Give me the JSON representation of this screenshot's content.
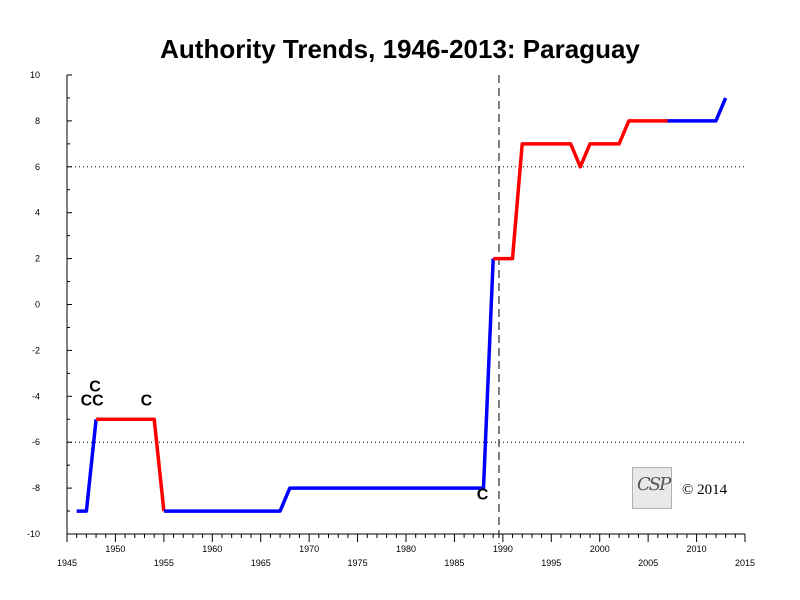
{
  "title": "Authority Trends, 1946-2013: Paraguay",
  "copyright": "© 2014",
  "logo_text": "CSP",
  "chart_data": {
    "type": "line",
    "title": "Authority Trends, 1946-2013: Paraguay",
    "xlabel": "",
    "ylabel": "",
    "xlim": [
      1945,
      2015
    ],
    "ylim": [
      -10,
      10
    ],
    "x_ticks": [
      1945,
      1950,
      1955,
      1960,
      1965,
      1970,
      1975,
      1980,
      1985,
      1990,
      1995,
      2000,
      2005,
      2010,
      2015
    ],
    "y_ticks": [
      -10,
      -8,
      -6,
      -4,
      -2,
      0,
      2,
      4,
      6,
      8,
      10
    ],
    "reference_lines": {
      "horizontal_dotted": [
        6,
        -6
      ],
      "vertical_dashed": [
        1989.6
      ]
    },
    "colors": {
      "blue": "#0000ff",
      "red": "#ff0000"
    },
    "segments": [
      {
        "color": "blue",
        "points": [
          [
            1946,
            -9
          ],
          [
            1947,
            -9
          ],
          [
            1948,
            -5
          ]
        ]
      },
      {
        "color": "red",
        "points": [
          [
            1948,
            -5
          ],
          [
            1954,
            -5
          ],
          [
            1955,
            -9
          ]
        ]
      },
      {
        "color": "blue",
        "points": [
          [
            1955,
            -9
          ],
          [
            1967,
            -9
          ],
          [
            1968,
            -8
          ],
          [
            1988,
            -8
          ],
          [
            1989,
            2
          ]
        ]
      },
      {
        "color": "red",
        "points": [
          [
            1989,
            2
          ],
          [
            1991,
            2
          ],
          [
            1992,
            7
          ],
          [
            1997,
            7
          ],
          [
            1998,
            6
          ],
          [
            1999,
            7
          ],
          [
            2002,
            7
          ],
          [
            2003,
            8
          ],
          [
            2007,
            8
          ]
        ]
      },
      {
        "color": "blue",
        "points": [
          [
            2007,
            8
          ],
          [
            2012,
            8
          ],
          [
            2013,
            9
          ]
        ]
      }
    ],
    "annotations": [
      {
        "text": "C",
        "x": 1947.9,
        "y": -3.8
      },
      {
        "text": "CC",
        "x": 1947.6,
        "y": -4.4
      },
      {
        "text": "C",
        "x": 1953.2,
        "y": -4.4
      },
      {
        "text": "C",
        "x": 1987.9,
        "y": -8.5
      }
    ]
  }
}
